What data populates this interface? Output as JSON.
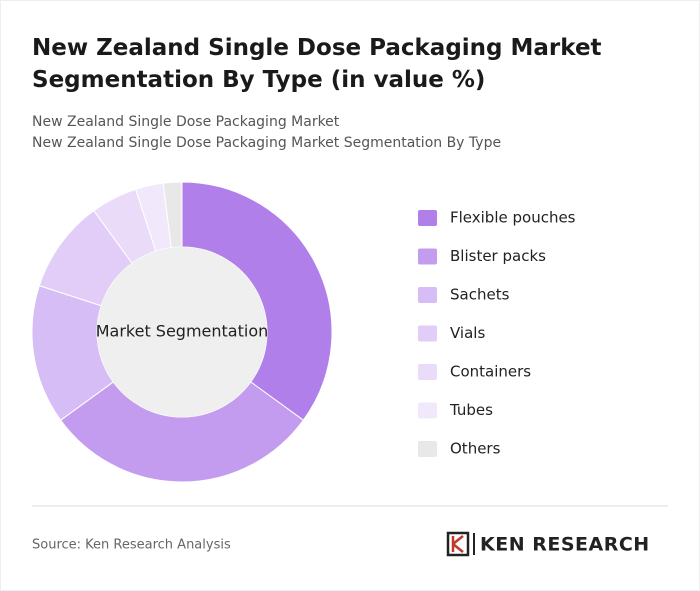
{
  "chart_data": {
    "type": "donut",
    "title": "New Zealand Single Dose Packaging Market Segmentation By Type (in value %)",
    "subtitle": [
      "New Zealand Single Dose Packaging Market",
      "New Zealand Single Dose Packaging Market Segmentation By Type"
    ],
    "center_label": "Market Segmentation",
    "categories": [
      "Flexible pouches",
      "Blister packs",
      "Sachets",
      "Vials",
      "Containers",
      "Tubes",
      "Others"
    ],
    "values": [
      35,
      30,
      15,
      10,
      5,
      3,
      2
    ],
    "colors": [
      "#b07fe9",
      "#c49cef",
      "#d7bdf5",
      "#e1cdf7",
      "#eadcf9",
      "#f1e9fb",
      "#e8e8e8"
    ],
    "source": "Source: Ken Research Analysis",
    "logo": "KEN RESEARCH"
  }
}
